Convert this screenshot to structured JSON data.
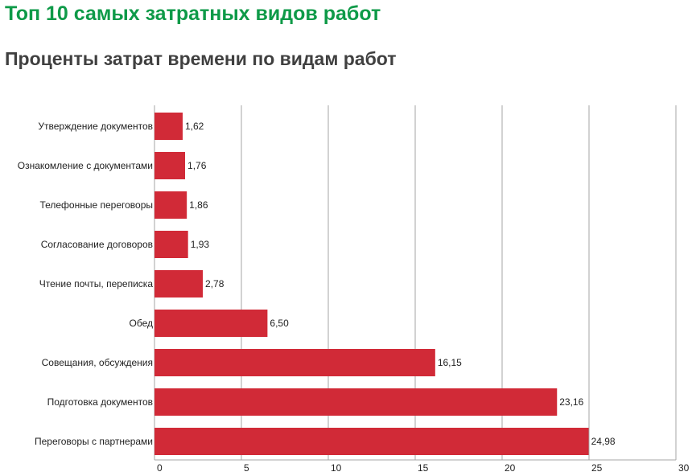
{
  "header": {
    "title": "Топ 10 самых затратных видов работ",
    "subtitle": "Проценты затрат времени по видам работ"
  },
  "colors": {
    "title": "#0e9a48",
    "subtitle": "#404040",
    "bar": "#d12a37",
    "grid": "#a6a6a6"
  },
  "chart_data": {
    "type": "bar",
    "orientation": "horizontal",
    "title": "",
    "xlabel": "",
    "ylabel": "",
    "grid": true,
    "legend": "none",
    "xlim": [
      0,
      30
    ],
    "ticks": [
      "0",
      "5",
      "10",
      "15",
      "20",
      "25",
      "30"
    ],
    "categories": [
      "Утверждение документов",
      "Ознакомление с документами",
      "Телефонные переговоры",
      "Согласование договоров",
      "Чтение почты, переписка",
      "Обед",
      "Совещания, обсуждения",
      "Подготовка документов",
      "Переговоры с партнерами"
    ],
    "values": [
      1.62,
      1.76,
      1.86,
      1.93,
      2.78,
      6.5,
      16.15,
      23.16,
      24.98
    ],
    "value_labels": [
      "1,62",
      "1,76",
      "1,86",
      "1,93",
      "2,78",
      "6,50",
      "16,15",
      "23,16",
      "24,98"
    ]
  }
}
